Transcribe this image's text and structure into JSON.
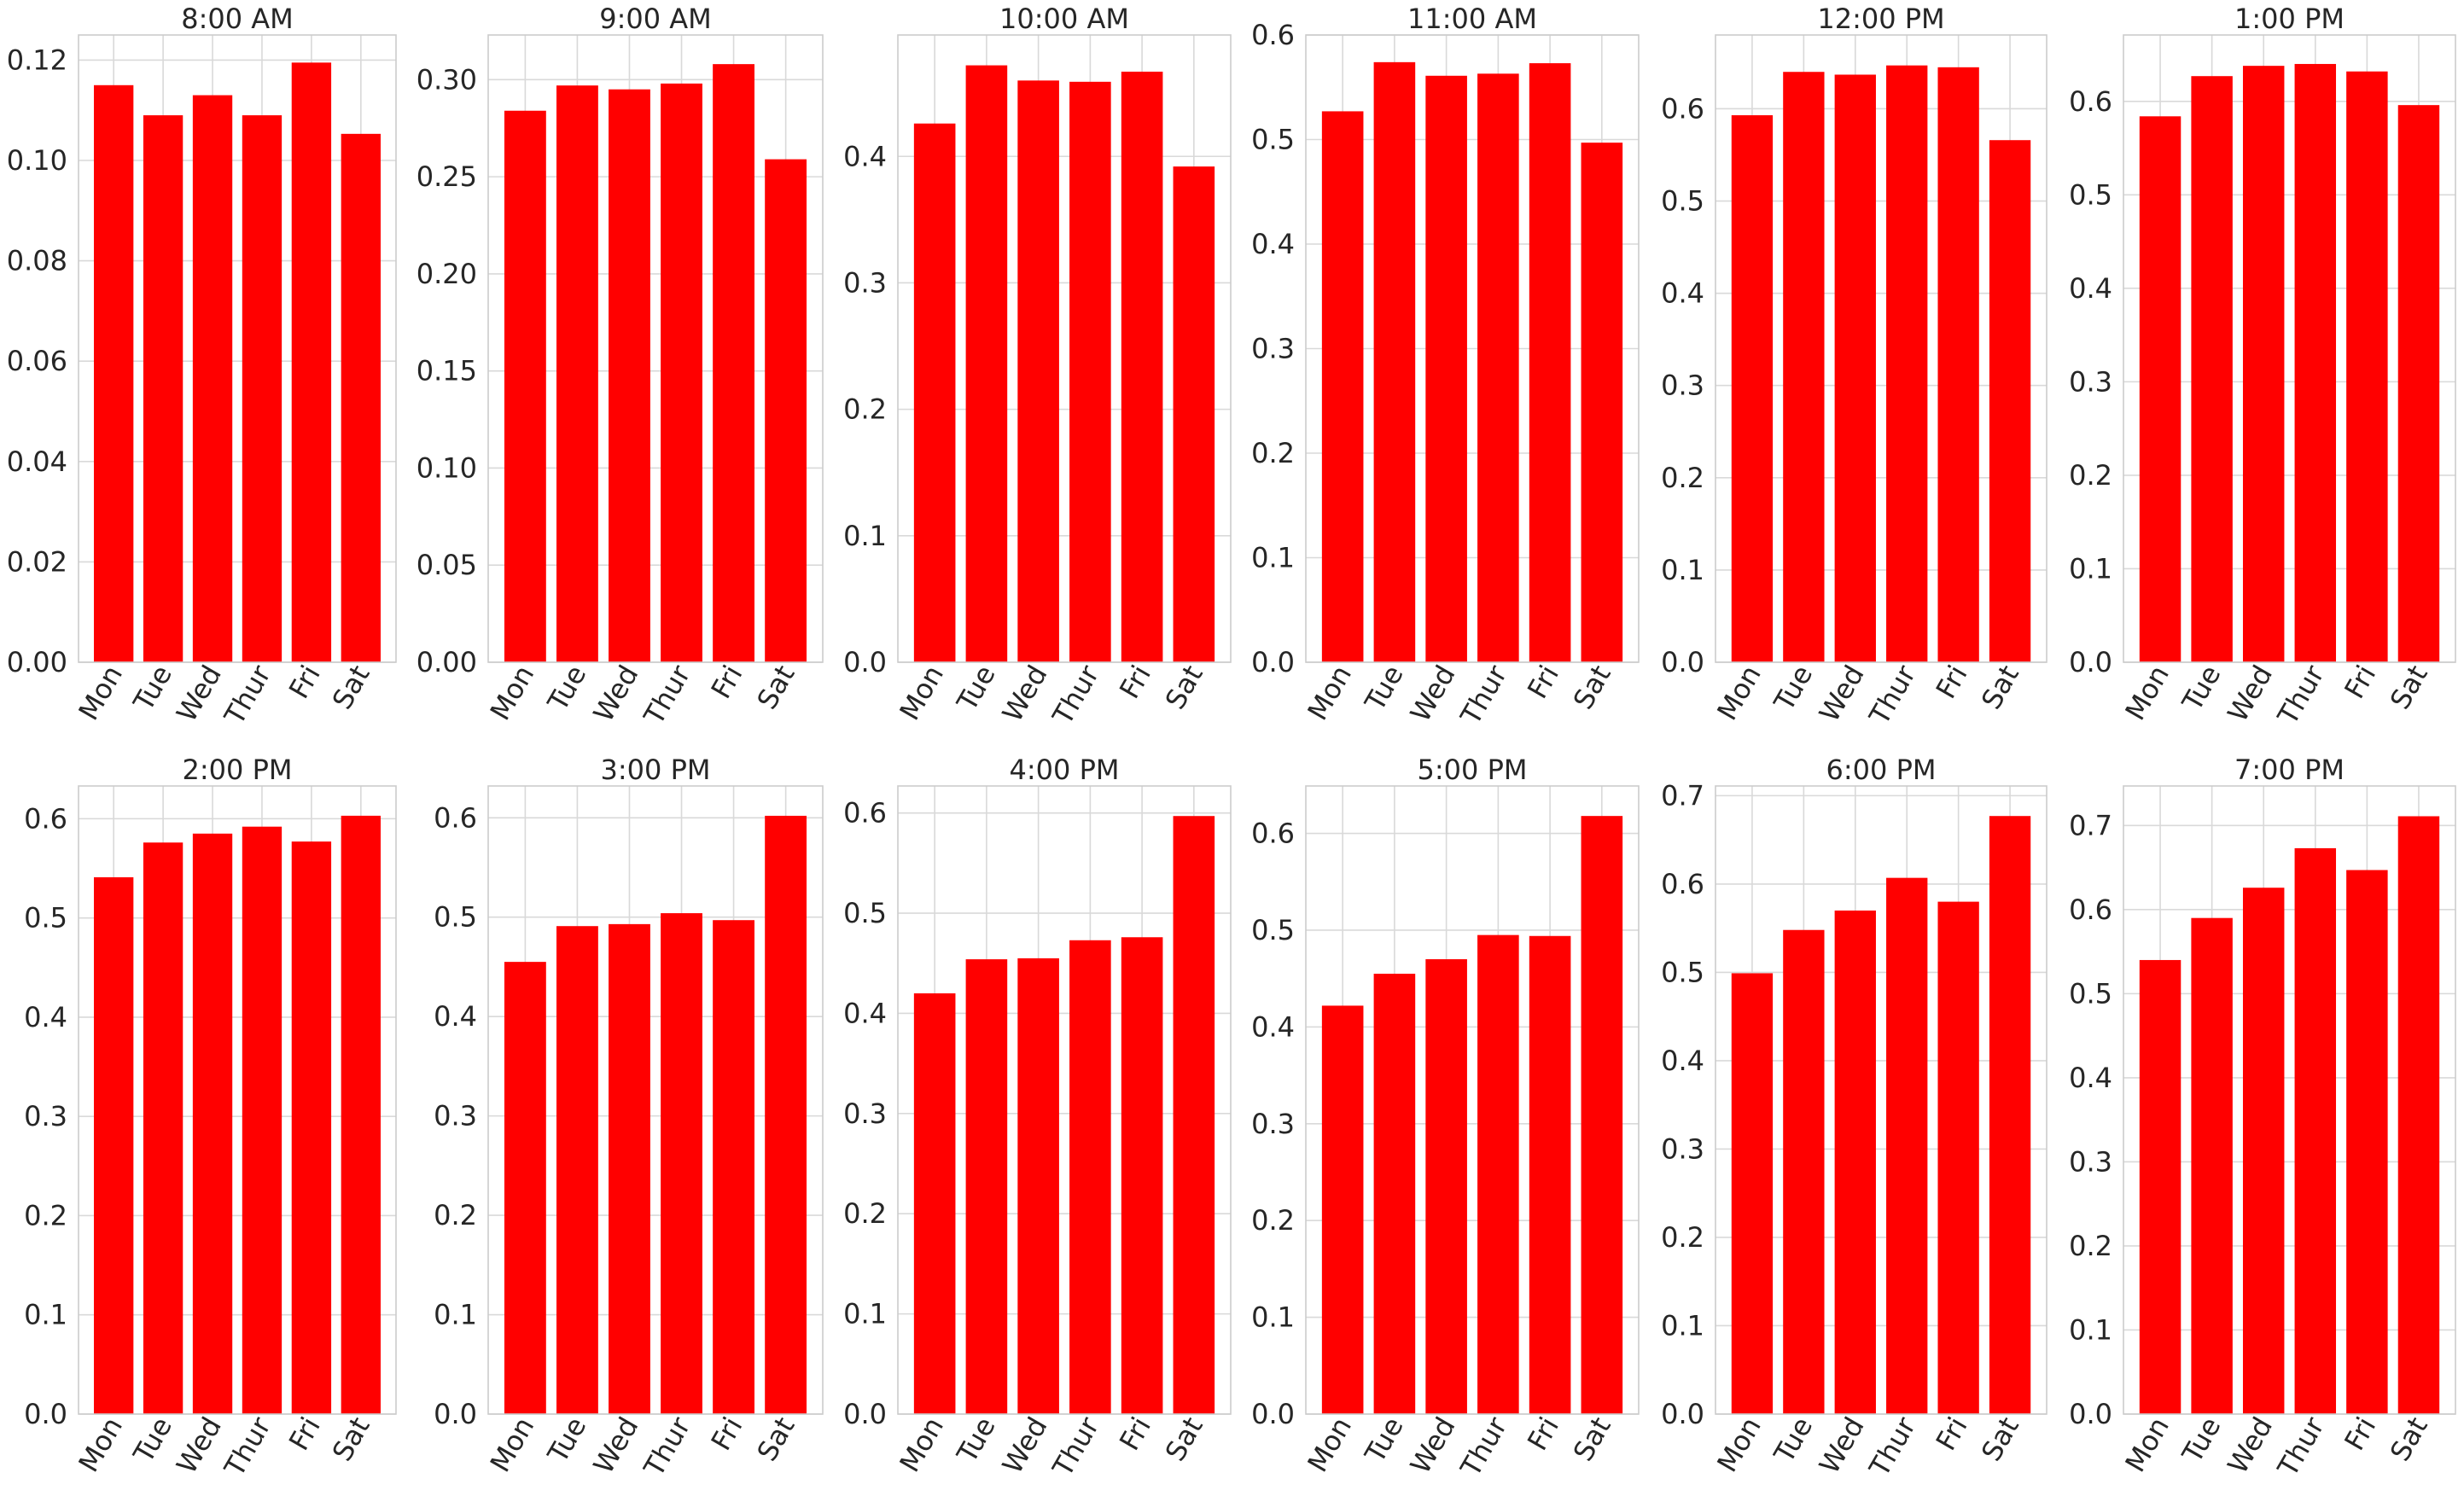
{
  "chart_data": [
    {
      "type": "bar",
      "title": "8:00 AM",
      "categories": [
        "Mon",
        "Tue",
        "Wed",
        "Thur",
        "Fri",
        "Sat"
      ],
      "values": [
        0.115,
        0.109,
        0.113,
        0.109,
        0.1195,
        0.1053
      ],
      "ylim": [
        0,
        0.125
      ],
      "yticks": [
        0.0,
        0.02,
        0.04,
        0.06,
        0.08,
        0.1,
        0.12
      ],
      "ytick_labels": [
        "0.00",
        "0.02",
        "0.04",
        "0.06",
        "0.08",
        "0.10",
        "0.12"
      ],
      "xlabel": "",
      "ylabel": "",
      "grid": true
    },
    {
      "type": "bar",
      "title": "9:00 AM",
      "categories": [
        "Mon",
        "Tue",
        "Wed",
        "Thur",
        "Fri",
        "Sat"
      ],
      "values": [
        0.284,
        0.297,
        0.295,
        0.298,
        0.308,
        0.259
      ],
      "ylim": [
        0,
        0.323
      ],
      "yticks": [
        0.0,
        0.05,
        0.1,
        0.15,
        0.2,
        0.25,
        0.3
      ],
      "ytick_labels": [
        "0.00",
        "0.05",
        "0.10",
        "0.15",
        "0.20",
        "0.25",
        "0.30"
      ],
      "xlabel": "",
      "ylabel": "",
      "grid": true
    },
    {
      "type": "bar",
      "title": "10:00 AM",
      "categories": [
        "Mon",
        "Tue",
        "Wed",
        "Thur",
        "Fri",
        "Sat"
      ],
      "values": [
        0.426,
        0.472,
        0.46,
        0.459,
        0.467,
        0.392
      ],
      "ylim": [
        0,
        0.496
      ],
      "yticks": [
        0.0,
        0.1,
        0.2,
        0.3,
        0.4
      ],
      "ytick_labels": [
        "0.0",
        "0.1",
        "0.2",
        "0.3",
        "0.4"
      ],
      "xlabel": "",
      "ylabel": "",
      "grid": true
    },
    {
      "type": "bar",
      "title": "11:00 AM",
      "categories": [
        "Mon",
        "Tue",
        "Wed",
        "Thur",
        "Fri",
        "Sat"
      ],
      "values": [
        0.527,
        0.574,
        0.561,
        0.563,
        0.573,
        0.497
      ],
      "ylim": [
        0,
        0.6
      ],
      "yticks": [
        0.0,
        0.1,
        0.2,
        0.3,
        0.4,
        0.5,
        0.6
      ],
      "ytick_labels": [
        "0.0",
        "0.1",
        "0.2",
        "0.3",
        "0.4",
        "0.5",
        "0.6"
      ],
      "xlabel": "",
      "ylabel": "",
      "grid": true
    },
    {
      "type": "bar",
      "title": "12:00 PM",
      "categories": [
        "Mon",
        "Tue",
        "Wed",
        "Thur",
        "Fri",
        "Sat"
      ],
      "values": [
        0.593,
        0.64,
        0.637,
        0.647,
        0.645,
        0.566
      ],
      "ylim": [
        0,
        0.68
      ],
      "yticks": [
        0.0,
        0.1,
        0.2,
        0.3,
        0.4,
        0.5,
        0.6
      ],
      "ytick_labels": [
        "0.0",
        "0.1",
        "0.2",
        "0.3",
        "0.4",
        "0.5",
        "0.6"
      ],
      "xlabel": "",
      "ylabel": "",
      "grid": true
    },
    {
      "type": "bar",
      "title": "1:00 PM",
      "categories": [
        "Mon",
        "Tue",
        "Wed",
        "Thur",
        "Fri",
        "Sat"
      ],
      "values": [
        0.584,
        0.627,
        0.638,
        0.64,
        0.632,
        0.596
      ],
      "ylim": [
        0,
        0.671
      ],
      "yticks": [
        0.0,
        0.1,
        0.2,
        0.3,
        0.4,
        0.5,
        0.6
      ],
      "ytick_labels": [
        "0.0",
        "0.1",
        "0.2",
        "0.3",
        "0.4",
        "0.5",
        "0.6"
      ],
      "xlabel": "",
      "ylabel": "",
      "grid": true
    },
    {
      "type": "bar",
      "title": "2:00 PM",
      "categories": [
        "Mon",
        "Tue",
        "Wed",
        "Thur",
        "Fri",
        "Sat"
      ],
      "values": [
        0.541,
        0.576,
        0.585,
        0.592,
        0.577,
        0.603
      ],
      "ylim": [
        0,
        0.633
      ],
      "yticks": [
        0.0,
        0.1,
        0.2,
        0.3,
        0.4,
        0.5,
        0.6
      ],
      "ytick_labels": [
        "0.0",
        "0.1",
        "0.2",
        "0.3",
        "0.4",
        "0.5",
        "0.6"
      ],
      "xlabel": "",
      "ylabel": "",
      "grid": true
    },
    {
      "type": "bar",
      "title": "3:00 PM",
      "categories": [
        "Mon",
        "Tue",
        "Wed",
        "Thur",
        "Fri",
        "Sat"
      ],
      "values": [
        0.455,
        0.491,
        0.493,
        0.504,
        0.497,
        0.602
      ],
      "ylim": [
        0,
        0.632
      ],
      "yticks": [
        0.0,
        0.1,
        0.2,
        0.3,
        0.4,
        0.5,
        0.6
      ],
      "ytick_labels": [
        "0.0",
        "0.1",
        "0.2",
        "0.3",
        "0.4",
        "0.5",
        "0.6"
      ],
      "xlabel": "",
      "ylabel": "",
      "grid": true
    },
    {
      "type": "bar",
      "title": "4:00 PM",
      "categories": [
        "Mon",
        "Tue",
        "Wed",
        "Thur",
        "Fri",
        "Sat"
      ],
      "values": [
        0.42,
        0.454,
        0.455,
        0.473,
        0.476,
        0.597
      ],
      "ylim": [
        0,
        0.627
      ],
      "yticks": [
        0.0,
        0.1,
        0.2,
        0.3,
        0.4,
        0.5,
        0.6
      ],
      "ytick_labels": [
        "0.0",
        "0.1",
        "0.2",
        "0.3",
        "0.4",
        "0.5",
        "0.6"
      ],
      "xlabel": "",
      "ylabel": "",
      "grid": true
    },
    {
      "type": "bar",
      "title": "5:00 PM",
      "categories": [
        "Mon",
        "Tue",
        "Wed",
        "Thur",
        "Fri",
        "Sat"
      ],
      "values": [
        0.422,
        0.455,
        0.47,
        0.495,
        0.494,
        0.618
      ],
      "ylim": [
        0,
        0.649
      ],
      "yticks": [
        0.0,
        0.1,
        0.2,
        0.3,
        0.4,
        0.5,
        0.6
      ],
      "ytick_labels": [
        "0.0",
        "0.1",
        "0.2",
        "0.3",
        "0.4",
        "0.5",
        "0.6"
      ],
      "xlabel": "",
      "ylabel": "",
      "grid": true
    },
    {
      "type": "bar",
      "title": "6:00 PM",
      "categories": [
        "Mon",
        "Tue",
        "Wed",
        "Thur",
        "Fri",
        "Sat"
      ],
      "values": [
        0.499,
        0.548,
        0.57,
        0.607,
        0.58,
        0.677
      ],
      "ylim": [
        0,
        0.711
      ],
      "yticks": [
        0.0,
        0.1,
        0.2,
        0.3,
        0.4,
        0.5,
        0.6,
        0.7
      ],
      "ytick_labels": [
        "0.0",
        "0.1",
        "0.2",
        "0.3",
        "0.4",
        "0.5",
        "0.6",
        "0.7"
      ],
      "xlabel": "",
      "ylabel": "",
      "grid": true
    },
    {
      "type": "bar",
      "title": "7:00 PM",
      "categories": [
        "Mon",
        "Tue",
        "Wed",
        "Thur",
        "Fri",
        "Sat"
      ],
      "values": [
        0.54,
        0.59,
        0.626,
        0.673,
        0.647,
        0.711
      ],
      "ylim": [
        0,
        0.747
      ],
      "yticks": [
        0.0,
        0.1,
        0.2,
        0.3,
        0.4,
        0.5,
        0.6,
        0.7
      ],
      "ytick_labels": [
        "0.0",
        "0.1",
        "0.2",
        "0.3",
        "0.4",
        "0.5",
        "0.6",
        "0.7"
      ],
      "xlabel": "",
      "ylabel": "",
      "grid": true
    }
  ],
  "colors": {
    "bar": "#ff0000",
    "grid": "#d9d9d9",
    "spine": "#cccccc",
    "text": "#262626",
    "background": "#ffffff"
  }
}
